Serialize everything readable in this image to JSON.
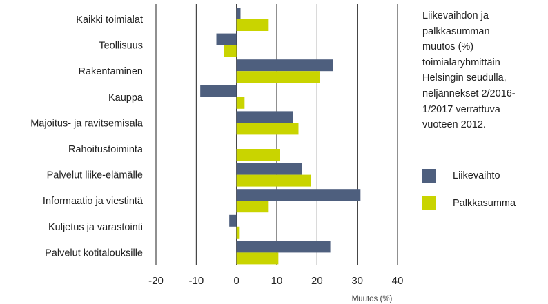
{
  "chart_data": {
    "type": "bar",
    "orientation": "horizontal",
    "title": "Liikevaihdon ja palkkasumman muutos (%) toimialaryhmittäin Helsingin seudulla, neljännekset 2/2016-1/2017 verrattuva vuoteen 2012.",
    "title_lines": [
      "Liikevaihdon ja",
      "palkkasumman",
      "muutos (%)",
      "toimialaryhmittäin",
      "Helsingin seudulla,",
      "neljännekset 2/2016-",
      "1/2017 verrattuva",
      "vuoteen 2012."
    ],
    "xlabel": "Muutos (%)",
    "ylabel": "",
    "xlim": [
      -20,
      40
    ],
    "xticks": [
      "-20",
      "-10",
      "0",
      "10",
      "20",
      "30",
      "40"
    ],
    "grid": "vertical",
    "legend_position": "right",
    "categories": [
      "Kaikki toimialat",
      "Teollisuus",
      "Rakentaminen",
      "Kauppa",
      "Majoitus- ja ravitsemisala",
      "Rahoitustoiminta",
      "Palvelut liike-elämälle",
      "Informaatio ja viestintä",
      "Kuljetus ja varastointi",
      "Palvelut kotitalouksille"
    ],
    "series": [
      {
        "name": "Liikevaihto",
        "color": "#4e5f7e",
        "values": [
          1.0,
          -5.0,
          24.0,
          -9.0,
          14.0,
          0.0,
          16.3,
          30.8,
          -1.8,
          23.3
        ]
      },
      {
        "name": "Palkkasumma",
        "color": "#c9d400",
        "values": [
          8.0,
          -3.2,
          20.7,
          2.0,
          15.4,
          10.8,
          18.5,
          8.0,
          0.8,
          10.4
        ]
      }
    ]
  }
}
